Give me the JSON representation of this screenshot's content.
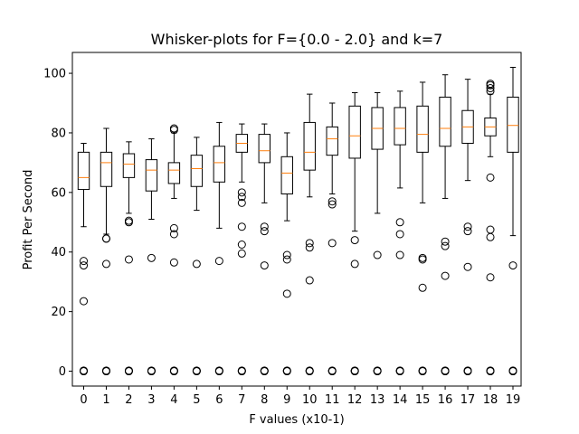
{
  "chart_data": {
    "type": "boxplot",
    "title": "Whisker-plots for F={0.0 - 2.0} and k=7",
    "xlabel": "F values (x10-1)",
    "ylabel": "Profit Per Second",
    "ylim": [
      -5,
      107
    ],
    "yticks": [
      0,
      20,
      40,
      60,
      80,
      100
    ],
    "grid": false,
    "median_color": "#ff7f0e",
    "box_color": "#000000",
    "categories": [
      "0",
      "1",
      "2",
      "3",
      "4",
      "5",
      "6",
      "7",
      "8",
      "9",
      "10",
      "11",
      "12",
      "13",
      "14",
      "15",
      "16",
      "17",
      "18",
      "19"
    ],
    "boxes": [
      {
        "q1": 61.0,
        "median": 65.0,
        "q3": 73.5,
        "whisker_low": 48.5,
        "whisker_high": 76.5,
        "outliers": [
          37.0,
          35.5,
          23.5,
          0.2,
          0.0,
          0.0
        ]
      },
      {
        "q1": 62.0,
        "median": 70.0,
        "q3": 73.5,
        "whisker_low": 46.0,
        "whisker_high": 81.5,
        "outliers": [
          44.5,
          44.5,
          36.0,
          0.2,
          0.0,
          0.0
        ]
      },
      {
        "q1": 65.0,
        "median": 69.5,
        "q3": 73.0,
        "whisker_low": 53.0,
        "whisker_high": 77.0,
        "outliers": [
          50.5,
          50.0,
          37.5,
          0.2,
          0.0,
          0.0
        ]
      },
      {
        "q1": 60.5,
        "median": 67.5,
        "q3": 71.0,
        "whisker_low": 51.0,
        "whisker_high": 78.0,
        "outliers": [
          38.0,
          0.2,
          0.0,
          0.0
        ]
      },
      {
        "q1": 63.0,
        "median": 67.5,
        "q3": 70.0,
        "whisker_low": 58.0,
        "whisker_high": 80.0,
        "outliers": [
          81.5,
          81.0,
          48.0,
          46.0,
          36.5,
          0.2,
          0.0,
          0.0
        ]
      },
      {
        "q1": 62.0,
        "median": 68.0,
        "q3": 72.5,
        "whisker_low": 54.0,
        "whisker_high": 78.5,
        "outliers": [
          36.0,
          0.2,
          0.0,
          0.0
        ]
      },
      {
        "q1": 63.5,
        "median": 70.0,
        "q3": 75.5,
        "whisker_low": 48.0,
        "whisker_high": 83.5,
        "outliers": [
          37.0,
          0.2,
          0.0,
          0.0
        ]
      },
      {
        "q1": 73.5,
        "median": 76.5,
        "q3": 79.5,
        "whisker_low": 63.5,
        "whisker_high": 83.0,
        "outliers": [
          60.0,
          58.5,
          56.5,
          48.5,
          42.5,
          39.5,
          0.2,
          0.0,
          0.0
        ]
      },
      {
        "q1": 70.0,
        "median": 74.0,
        "q3": 79.5,
        "whisker_low": 56.5,
        "whisker_high": 83.0,
        "outliers": [
          48.5,
          47.0,
          35.5,
          0.2,
          0.0,
          0.0
        ]
      },
      {
        "q1": 59.5,
        "median": 66.5,
        "q3": 72.0,
        "whisker_low": 50.5,
        "whisker_high": 80.0,
        "outliers": [
          39.0,
          37.5,
          26.0,
          0.2,
          0.0,
          0.0
        ]
      },
      {
        "q1": 67.5,
        "median": 73.5,
        "q3": 83.5,
        "whisker_low": 58.5,
        "whisker_high": 93.0,
        "outliers": [
          43.0,
          41.5,
          30.5,
          0.2,
          0.0,
          0.0
        ]
      },
      {
        "q1": 72.5,
        "median": 78.0,
        "q3": 82.0,
        "whisker_low": 59.5,
        "whisker_high": 90.0,
        "outliers": [
          57.0,
          56.0,
          43.0,
          0.2,
          0.0,
          0.0
        ]
      },
      {
        "q1": 71.5,
        "median": 79.0,
        "q3": 89.0,
        "whisker_low": 47.0,
        "whisker_high": 93.5,
        "outliers": [
          44.0,
          36.0,
          0.2,
          0.0,
          0.0
        ]
      },
      {
        "q1": 74.5,
        "median": 81.5,
        "q3": 88.5,
        "whisker_low": 53.0,
        "whisker_high": 93.5,
        "outliers": [
          39.0,
          0.2,
          0.0,
          0.0
        ]
      },
      {
        "q1": 76.0,
        "median": 81.5,
        "q3": 88.5,
        "whisker_low": 61.5,
        "whisker_high": 94.0,
        "outliers": [
          50.0,
          46.0,
          39.0,
          0.2,
          0.0,
          0.0
        ]
      },
      {
        "q1": 73.5,
        "median": 79.5,
        "q3": 89.0,
        "whisker_low": 56.5,
        "whisker_high": 97.0,
        "outliers": [
          38.0,
          37.5,
          28.0,
          0.2,
          0.0,
          0.0
        ]
      },
      {
        "q1": 75.5,
        "median": 81.5,
        "q3": 92.0,
        "whisker_low": 58.0,
        "whisker_high": 99.5,
        "outliers": [
          43.5,
          42.0,
          32.0,
          0.2,
          0.0,
          0.0
        ]
      },
      {
        "q1": 76.5,
        "median": 82.0,
        "q3": 87.5,
        "whisker_low": 64.0,
        "whisker_high": 98.0,
        "outliers": [
          48.5,
          47.0,
          35.0,
          0.2,
          0.0,
          0.0
        ]
      },
      {
        "q1": 79.0,
        "median": 82.0,
        "q3": 85.0,
        "whisker_low": 72.0,
        "whisker_high": 93.0,
        "outliers": [
          96.5,
          96.0,
          95.0,
          94.0,
          65.0,
          47.5,
          45.0,
          31.5,
          0.2,
          0.0,
          0.0
        ]
      },
      {
        "q1": 73.5,
        "median": 82.5,
        "q3": 92.0,
        "whisker_low": 45.5,
        "whisker_high": 102.0,
        "outliers": [
          35.5,
          0.2,
          0.0,
          0.0
        ]
      }
    ]
  }
}
